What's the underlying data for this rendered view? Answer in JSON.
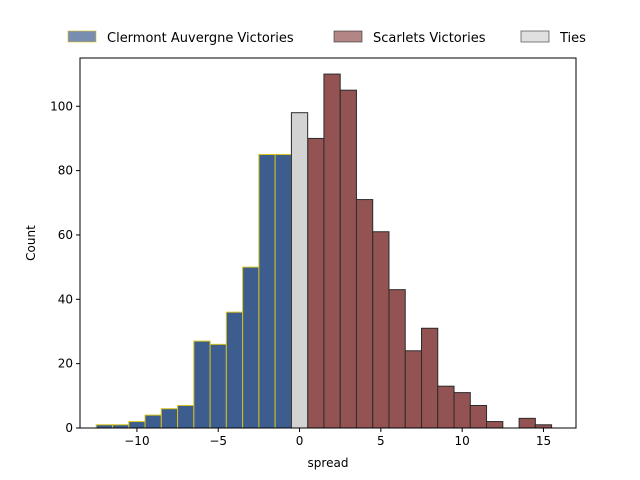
{
  "chart_data": {
    "type": "bar",
    "xlabel": "spread",
    "ylabel": "Count",
    "xlim": [
      -13.5,
      17
    ],
    "ylim": [
      0,
      115
    ],
    "xticks": [
      -10,
      -5,
      0,
      5,
      10,
      15
    ],
    "yticks": [
      0,
      20,
      40,
      60,
      80,
      100
    ],
    "xtick_labels": [
      "−10",
      "−5",
      "0",
      "5",
      "10",
      "15"
    ],
    "ytick_labels": [
      "0",
      "20",
      "40",
      "60",
      "80",
      "100"
    ],
    "bin_width": 1,
    "legend_position": "top-center-outside",
    "grid": false,
    "series": [
      {
        "name": "Clermont Auvergne Victories",
        "color": "#3e5d8f",
        "edge_color": "#d4c21a",
        "bins": [
          {
            "x": -12,
            "value": 1
          },
          {
            "x": -11,
            "value": 1
          },
          {
            "x": -10,
            "value": 2
          },
          {
            "x": -9,
            "value": 4
          },
          {
            "x": -8,
            "value": 6
          },
          {
            "x": -7,
            "value": 7
          },
          {
            "x": -6,
            "value": 27
          },
          {
            "x": -5,
            "value": 26
          },
          {
            "x": -4,
            "value": 36
          },
          {
            "x": -3,
            "value": 50
          },
          {
            "x": -2,
            "value": 85
          },
          {
            "x": -1,
            "value": 85
          }
        ]
      },
      {
        "name": "Scarlets Victories",
        "color": "#935352",
        "edge_color": "#2b2b2b",
        "bins": [
          {
            "x": 1,
            "value": 90
          },
          {
            "x": 2,
            "value": 110
          },
          {
            "x": 3,
            "value": 105
          },
          {
            "x": 4,
            "value": 71
          },
          {
            "x": 5,
            "value": 61
          },
          {
            "x": 6,
            "value": 43
          },
          {
            "x": 7,
            "value": 24
          },
          {
            "x": 8,
            "value": 31
          },
          {
            "x": 9,
            "value": 13
          },
          {
            "x": 10,
            "value": 11
          },
          {
            "x": 11,
            "value": 7
          },
          {
            "x": 12,
            "value": 2
          },
          {
            "x": 14,
            "value": 3
          },
          {
            "x": 15,
            "value": 1
          }
        ]
      },
      {
        "name": "Ties",
        "color": "#d3d3d3",
        "edge_color": "#2b2b2b",
        "bins": [
          {
            "x": 0,
            "value": 98
          }
        ]
      }
    ]
  }
}
